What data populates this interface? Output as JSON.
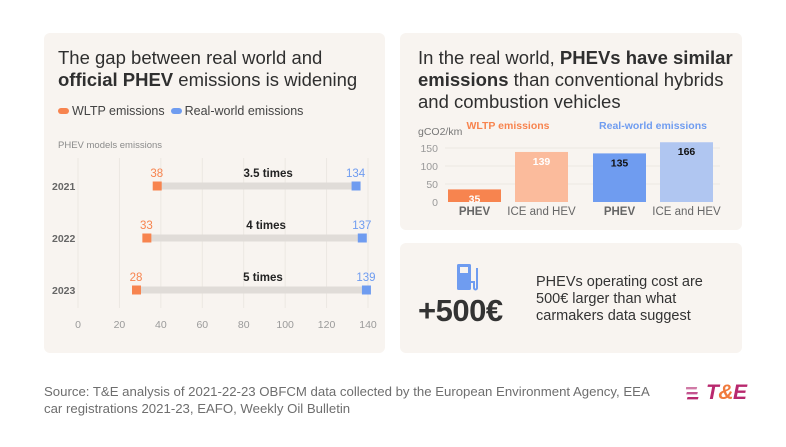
{
  "colors": {
    "wltp": "#f7844f",
    "wltp_light": "#fbbb9c",
    "real": "#6f9cf0",
    "real_light": "#b0c6f1",
    "gap_bar": "#e0dcd8",
    "logo_magenta": "#b8286e",
    "logo_orange": "#f07a3c"
  },
  "left_card": {
    "title_line1": "The gap between real world and",
    "title_bold": "official PHEV",
    "title_rest": " emissions is widening",
    "legend": [
      {
        "label": "WLTP emissions",
        "color_key": "wltp"
      },
      {
        "label": "Real-world emissions",
        "color_key": "real"
      }
    ],
    "subtitle": "PHEV models emissions"
  },
  "right_top_card": {
    "title_prefix": "In the real world, ",
    "title_bold1": "PHEVs have similar",
    "title_bold2": "emissions",
    "title_rest": " than conventional hybrids and combustion vehicles"
  },
  "right_bottom_card": {
    "icon": "fuel-pump-icon",
    "big_value": "+500€",
    "description": "PHEVs operating cost are 500€ larger than what carmakers data suggest"
  },
  "footer": {
    "source": "Source: T&E analysis of 2021-22-23 OBFCM data collected by the European Environment Agency, EEA car registrations 2021-23, EAFO, Weekly Oil Bulletin",
    "logo_left": "T",
    "logo_amp": "&",
    "logo_right": "E"
  },
  "chart_data": [
    {
      "type": "dumbbell",
      "title": "PHEV models emissions",
      "categories": [
        "2021",
        "2022",
        "2023"
      ],
      "series": [
        {
          "name": "WLTP emissions",
          "values": [
            38,
            33,
            28
          ]
        },
        {
          "name": "Real-world emissions",
          "values": [
            134,
            137,
            139
          ]
        }
      ],
      "annotations": [
        "3.5 times",
        "4 times",
        "5 times"
      ],
      "xlim": [
        0,
        140
      ],
      "xticks": [
        0,
        20,
        40,
        60,
        80,
        100,
        120,
        140
      ],
      "grid": true,
      "legend": "top-left"
    },
    {
      "type": "bar",
      "ylabel": "gCO2/km",
      "ylim": [
        0,
        166
      ],
      "yticks": [
        0,
        50,
        100,
        150
      ],
      "groups": [
        {
          "name": "WLTP emissions",
          "categories": [
            "PHEV",
            "ICE and HEV"
          ],
          "values": [
            35,
            139
          ]
        },
        {
          "name": "Real-world emissions",
          "categories": [
            "PHEV",
            "ICE and HEV"
          ],
          "values": [
            135,
            166
          ]
        }
      ],
      "grid": true
    }
  ]
}
